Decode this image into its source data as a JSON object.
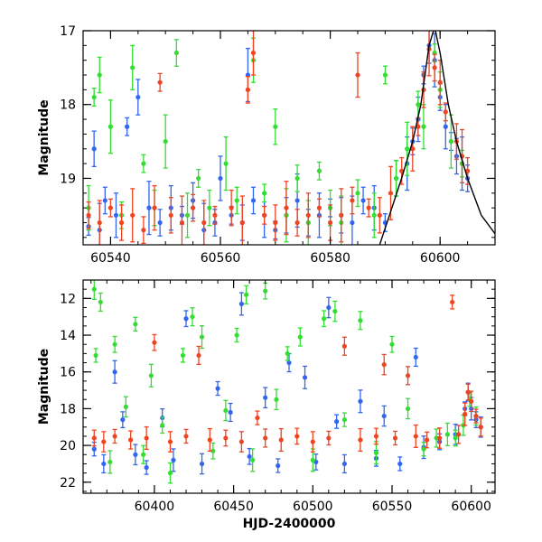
{
  "chart_data": [
    {
      "type": "scatter",
      "title": "",
      "xlabel": "",
      "ylabel": "Magnitude",
      "xlim": [
        60535,
        60610
      ],
      "ylim": [
        17,
        19.9
      ],
      "y_inverted": true,
      "x_ticks_major": [
        60540,
        60560,
        60580,
        60600
      ],
      "x_tick_labels": [
        "60540",
        "60560",
        "60580",
        "60600"
      ],
      "y_ticks_major": [
        17,
        18,
        19
      ],
      "y_tick_labels": [
        "17",
        "18",
        "19"
      ],
      "grid": false,
      "legend": "none",
      "marker_style": "filled circles with vertical error bars",
      "model_curve": {
        "color": "#000000",
        "points": [
          [
            60589.0,
            19.9
          ],
          [
            60591.0,
            19.45
          ],
          [
            60593.0,
            19.0
          ],
          [
            60595.0,
            18.5
          ],
          [
            60596.5,
            18.0
          ],
          [
            60598.0,
            17.2
          ],
          [
            60599.0,
            16.95
          ],
          [
            60600.0,
            17.3
          ],
          [
            60601.5,
            18.0
          ],
          [
            60603.0,
            18.5
          ],
          [
            60605.0,
            19.0
          ],
          [
            60607.5,
            19.5
          ],
          [
            60610.0,
            19.75
          ]
        ]
      },
      "series": [
        {
          "color": "#3366ee",
          "points": [
            [
              60536,
              19.65
            ],
            [
              60537,
              18.6
            ],
            [
              60538,
              19.7
            ],
            [
              60539,
              19.3
            ],
            [
              60541,
              19.5
            ],
            [
              60543,
              18.3
            ],
            [
              60545,
              17.9
            ],
            [
              60547,
              19.4
            ],
            [
              60549,
              19.6
            ],
            [
              60551,
              19.4
            ],
            [
              60553,
              19.5
            ],
            [
              60555,
              19.3
            ],
            [
              60557,
              19.7
            ],
            [
              60559,
              19.6
            ],
            [
              60560,
              19.0
            ],
            [
              60562,
              19.5
            ],
            [
              60564,
              19.6
            ],
            [
              60565,
              17.6
            ],
            [
              60566,
              19.3
            ],
            [
              60568,
              19.5
            ],
            [
              60570,
              19.7
            ],
            [
              60572,
              19.5
            ],
            [
              60574,
              19.3
            ],
            [
              60576,
              19.6
            ],
            [
              60578,
              19.5
            ],
            [
              60580,
              19.4
            ],
            [
              60582,
              19.5
            ],
            [
              60584,
              19.6
            ],
            [
              60586,
              19.3
            ],
            [
              60588,
              19.4
            ],
            [
              60590,
              19.6
            ],
            [
              60592,
              19.0
            ],
            [
              60594,
              18.8
            ],
            [
              60595,
              18.5
            ],
            [
              60596,
              18.2
            ],
            [
              60597,
              17.6
            ],
            [
              60598,
              17.2
            ],
            [
              60599,
              17.4
            ],
            [
              60600,
              17.9
            ],
            [
              60601,
              18.3
            ],
            [
              60602,
              18.5
            ],
            [
              60603,
              18.7
            ],
            [
              60604,
              18.8
            ],
            [
              60605,
              19.0
            ]
          ]
        },
        {
          "color": "#33dd33",
          "points": [
            [
              60536,
              19.4
            ],
            [
              60537,
              17.9
            ],
            [
              60538,
              17.6
            ],
            [
              60540,
              18.3
            ],
            [
              60542,
              19.5
            ],
            [
              60544,
              17.5
            ],
            [
              60546,
              18.8
            ],
            [
              60548,
              19.4
            ],
            [
              60550,
              18.5
            ],
            [
              60552,
              17.3
            ],
            [
              60554,
              19.5
            ],
            [
              60556,
              19.0
            ],
            [
              60558,
              19.4
            ],
            [
              60561,
              18.8
            ],
            [
              60563,
              19.3
            ],
            [
              60566,
              17.4
            ],
            [
              60568,
              19.2
            ],
            [
              60570,
              18.3
            ],
            [
              60572,
              19.5
            ],
            [
              60574,
              19.0
            ],
            [
              60576,
              19.6
            ],
            [
              60578,
              18.9
            ],
            [
              60580,
              19.4
            ],
            [
              60582,
              19.6
            ],
            [
              60585,
              19.2
            ],
            [
              60588,
              19.5
            ],
            [
              60590,
              17.6
            ],
            [
              60592,
              19.0
            ],
            [
              60594,
              18.6
            ],
            [
              60596,
              18.0
            ],
            [
              60597,
              18.3
            ],
            [
              60599,
              17.3
            ],
            [
              60600,
              17.8
            ],
            [
              60602,
              18.5
            ],
            [
              60604,
              18.8
            ]
          ]
        },
        {
          "color": "#ee4422",
          "points": [
            [
              60536,
              19.5
            ],
            [
              60538,
              19.6
            ],
            [
              60540,
              19.4
            ],
            [
              60542,
              19.6
            ],
            [
              60544,
              19.5
            ],
            [
              60546,
              19.7
            ],
            [
              60548,
              19.4
            ],
            [
              60549,
              17.7
            ],
            [
              60551,
              19.5
            ],
            [
              60553,
              19.6
            ],
            [
              60555,
              19.4
            ],
            [
              60557,
              19.6
            ],
            [
              60559,
              19.5
            ],
            [
              60562,
              19.4
            ],
            [
              60564,
              19.6
            ],
            [
              60565,
              17.8
            ],
            [
              60566,
              17.3
            ],
            [
              60568,
              19.5
            ],
            [
              60570,
              19.6
            ],
            [
              60572,
              19.4
            ],
            [
              60574,
              19.6
            ],
            [
              60576,
              19.5
            ],
            [
              60578,
              19.4
            ],
            [
              60580,
              19.6
            ],
            [
              60582,
              19.5
            ],
            [
              60584,
              19.3
            ],
            [
              60585,
              17.6
            ],
            [
              60587,
              19.4
            ],
            [
              60589,
              19.5
            ],
            [
              60591,
              19.2
            ],
            [
              60593,
              18.9
            ],
            [
              60595,
              18.6
            ],
            [
              60596,
              18.3
            ],
            [
              60597,
              17.8
            ],
            [
              60598,
              17.25
            ],
            [
              60599,
              17.5
            ],
            [
              60600,
              17.7
            ],
            [
              60601,
              18.1
            ],
            [
              60603,
              18.5
            ],
            [
              60604,
              18.7
            ],
            [
              60605,
              18.9
            ]
          ]
        }
      ]
    },
    {
      "type": "scatter",
      "title": "",
      "xlabel": "HJD-2400000",
      "ylabel": "Magnitude",
      "xlim": [
        60355,
        60615
      ],
      "ylim": [
        11,
        22.6
      ],
      "y_inverted": true,
      "x_ticks_major": [
        60400,
        60450,
        60500,
        60550,
        60600
      ],
      "x_tick_labels": [
        "60400",
        "60450",
        "60500",
        "60550",
        "60600"
      ],
      "y_ticks_major": [
        12,
        14,
        16,
        18,
        20,
        22
      ],
      "y_tick_labels": [
        "12",
        "14",
        "16",
        "18",
        "20",
        "22"
      ],
      "grid": false,
      "legend": "none",
      "marker_style": "filled circles with vertical error bars",
      "series": [
        {
          "color": "#3366ee",
          "points": [
            [
              60362,
              20.2
            ],
            [
              60368,
              21.0
            ],
            [
              60375,
              16.0
            ],
            [
              60380,
              18.6
            ],
            [
              60388,
              20.5
            ],
            [
              60395,
              21.2
            ],
            [
              60405,
              18.5
            ],
            [
              60412,
              20.8
            ],
            [
              60420,
              13.1
            ],
            [
              60430,
              21.0
            ],
            [
              60440,
              16.9
            ],
            [
              60448,
              18.2
            ],
            [
              60455,
              12.3
            ],
            [
              60460,
              20.6
            ],
            [
              60470,
              17.4
            ],
            [
              60478,
              21.1
            ],
            [
              60485,
              15.5
            ],
            [
              60495,
              16.3
            ],
            [
              60502,
              20.9
            ],
            [
              60510,
              12.5
            ],
            [
              60515,
              18.7
            ],
            [
              60520,
              21.0
            ],
            [
              60530,
              17.6
            ],
            [
              60540,
              20.7
            ],
            [
              60545,
              18.4
            ],
            [
              60555,
              21.0
            ],
            [
              60565,
              15.2
            ],
            [
              60570,
              20.1
            ],
            [
              60580,
              19.8
            ],
            [
              60590,
              19.4
            ],
            [
              60596,
              18.0
            ],
            [
              60598,
              17.1
            ],
            [
              60600,
              18.0
            ],
            [
              60603,
              18.6
            ],
            [
              60606,
              19.0
            ]
          ]
        },
        {
          "color": "#33dd33",
          "points": [
            [
              60362,
              11.5
            ],
            [
              60363,
              15.1
            ],
            [
              60366,
              12.2
            ],
            [
              60372,
              20.9
            ],
            [
              60375,
              14.5
            ],
            [
              60382,
              17.9
            ],
            [
              60388,
              13.4
            ],
            [
              60393,
              20.5
            ],
            [
              60398,
              16.2
            ],
            [
              60405,
              18.9
            ],
            [
              60410,
              21.5
            ],
            [
              60418,
              15.1
            ],
            [
              60424,
              13.0
            ],
            [
              60430,
              14.1
            ],
            [
              60437,
              20.3
            ],
            [
              60445,
              18.1
            ],
            [
              60452,
              14.0
            ],
            [
              60458,
              11.8
            ],
            [
              60462,
              20.8
            ],
            [
              60470,
              11.6
            ],
            [
              60477,
              17.5
            ],
            [
              60484,
              15.0
            ],
            [
              60492,
              14.1
            ],
            [
              60500,
              20.8
            ],
            [
              60507,
              13.1
            ],
            [
              60514,
              12.7
            ],
            [
              60520,
              18.6
            ],
            [
              60530,
              13.2
            ],
            [
              60540,
              20.4
            ],
            [
              60550,
              14.5
            ],
            [
              60560,
              18.0
            ],
            [
              60570,
              20.2
            ],
            [
              60578,
              19.6
            ],
            [
              60585,
              19.4
            ],
            [
              60590,
              19.6
            ],
            [
              60595,
              18.9
            ],
            [
              60599,
              17.5
            ],
            [
              60603,
              18.4
            ]
          ]
        },
        {
          "color": "#ee4422",
          "points": [
            [
              60362,
              19.6
            ],
            [
              60368,
              19.8
            ],
            [
              60375,
              19.5
            ],
            [
              60385,
              19.7
            ],
            [
              60395,
              19.6
            ],
            [
              60400,
              14.4
            ],
            [
              60410,
              19.8
            ],
            [
              60420,
              19.5
            ],
            [
              60428,
              15.1
            ],
            [
              60435,
              19.7
            ],
            [
              60445,
              19.6
            ],
            [
              60455,
              19.8
            ],
            [
              60465,
              18.5
            ],
            [
              60470,
              19.6
            ],
            [
              60480,
              19.7
            ],
            [
              60490,
              19.5
            ],
            [
              60500,
              19.8
            ],
            [
              60510,
              19.6
            ],
            [
              60520,
              14.6
            ],
            [
              60530,
              19.7
            ],
            [
              60540,
              19.5
            ],
            [
              60545,
              15.6
            ],
            [
              60552,
              19.6
            ],
            [
              60560,
              16.2
            ],
            [
              60565,
              19.5
            ],
            [
              60572,
              19.7
            ],
            [
              60580,
              19.6
            ],
            [
              60588,
              12.2
            ],
            [
              60592,
              19.4
            ],
            [
              60596,
              18.3
            ],
            [
              60598,
              17.1
            ],
            [
              60600,
              17.6
            ],
            [
              60603,
              18.4
            ],
            [
              60606,
              19.0
            ]
          ]
        }
      ]
    }
  ]
}
